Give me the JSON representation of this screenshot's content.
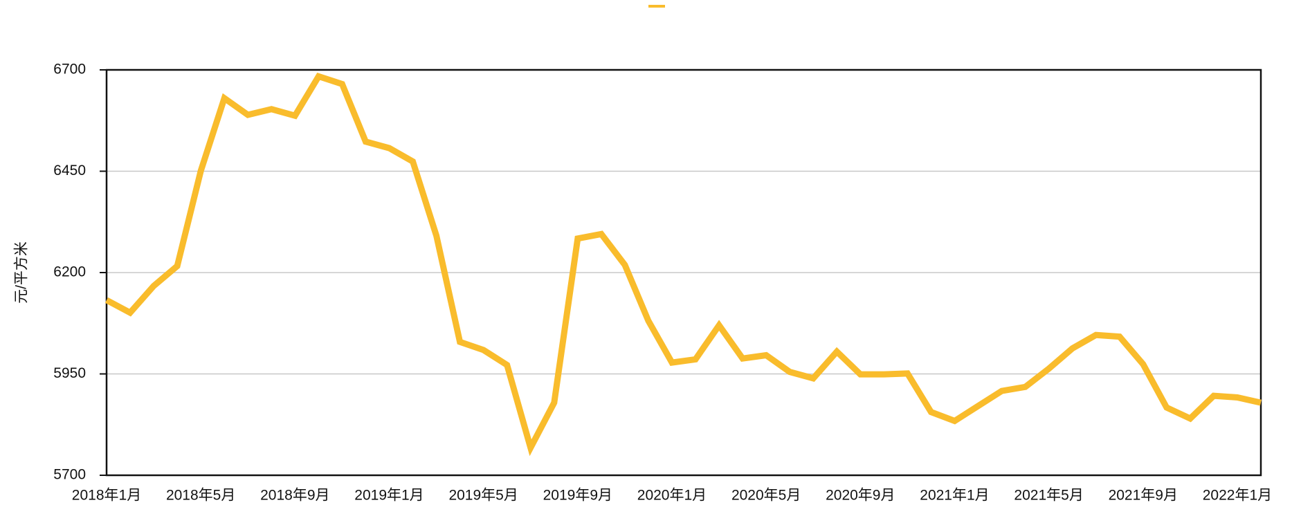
{
  "chart_data": {
    "type": "line",
    "y_label": "元/平方米",
    "categories": [
      "2018年1月",
      null,
      null,
      null,
      "2018年5月",
      null,
      null,
      null,
      "2018年9月",
      null,
      null,
      null,
      "2019年1月",
      null,
      null,
      null,
      "2019年5月",
      null,
      null,
      null,
      "2019年9月",
      null,
      null,
      null,
      "2020年1月",
      null,
      null,
      null,
      "2020年5月",
      null,
      null,
      null,
      "2020年9月",
      null,
      null,
      null,
      "2021年1月",
      null,
      null,
      null,
      "2021年5月",
      null,
      null,
      null,
      "2021年9月",
      null,
      null,
      null,
      "2022年1月",
      null
    ],
    "series": [
      {
        "color": "#f9bc2c",
        "values": [
          6132,
          6101,
          6167,
          6216,
          6451,
          6630,
          6589,
          6603,
          6587,
          6684,
          6665,
          6523,
          6507,
          6474,
          6291,
          6029,
          6009,
          5972,
          5768,
          5879,
          6284,
          6295,
          6219,
          6081,
          5978,
          5986,
          6070,
          5988,
          5996,
          5955,
          5939,
          6005,
          5949,
          5949,
          5951,
          5856,
          5834,
          5871,
          5908,
          5918,
          5963,
          6013,
          6046,
          6042,
          5974,
          5867,
          5840,
          5896,
          5892,
          5879
        ]
      }
    ],
    "ylim": [
      5700,
      6700
    ],
    "yticks": [
      5700,
      5950,
      6200,
      6450,
      6700
    ],
    "grid": true
  }
}
